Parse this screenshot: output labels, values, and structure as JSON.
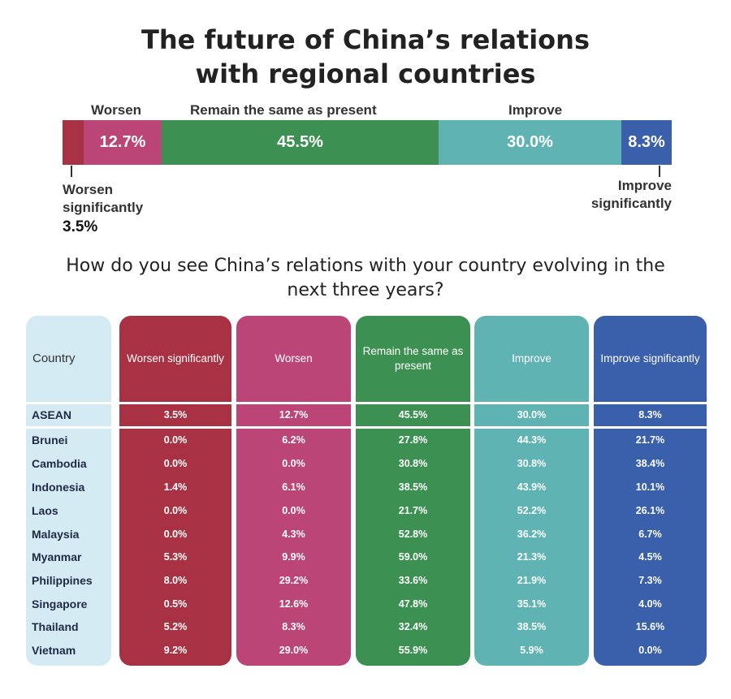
{
  "title_line1": "The future of China’s relations",
  "title_line2": "with regional countries",
  "question_line1": "How do you see China’s relations with your country evolving in the",
  "question_line2": "next three years?",
  "colors": {
    "worsen_significantly": "#a83244",
    "worsen": "#bc4577",
    "same": "#3c9152",
    "improve": "#5fb3b3",
    "improve_significantly": "#3b60ab",
    "country_col": "#d4ebf4"
  },
  "chart_data": [
    {
      "type": "bar",
      "stacked": true,
      "categories": [
        "Worsen significantly",
        "Worsen",
        "Remain the same as present",
        "Improve",
        "Improve significantly"
      ],
      "values": [
        3.5,
        12.7,
        45.5,
        30.0,
        8.3
      ],
      "value_labels": [
        "3.5%",
        "12.7%",
        "45.5%",
        "30.0%",
        "8.3%"
      ],
      "top_labels": {
        "worsen": "Worsen",
        "same": "Remain the same as present",
        "improve": "Improve"
      },
      "side_labels": {
        "worsen_sig_l1": "Worsen",
        "worsen_sig_l2": "significantly",
        "improve_sig_l1": "Improve",
        "improve_sig_l2": "significantly"
      }
    },
    {
      "type": "table",
      "columns": [
        "Country",
        "Worsen significantly",
        "Worsen",
        "Remain the same as present",
        "Improve",
        "Improve significantly"
      ],
      "rows": [
        [
          "ASEAN",
          "3.5%",
          "12.7%",
          "45.5%",
          "30.0%",
          "8.3%"
        ],
        [
          "Brunei",
          "0.0%",
          "6.2%",
          "27.8%",
          "44.3%",
          "21.7%"
        ],
        [
          "Cambodia",
          "0.0%",
          "0.0%",
          "30.8%",
          "30.8%",
          "38.4%"
        ],
        [
          "Indonesia",
          "1.4%",
          "6.1%",
          "38.5%",
          "43.9%",
          "10.1%"
        ],
        [
          "Laos",
          "0.0%",
          "0.0%",
          "21.7%",
          "52.2%",
          "26.1%"
        ],
        [
          "Malaysia",
          "0.0%",
          "4.3%",
          "52.8%",
          "36.2%",
          "6.7%"
        ],
        [
          "Myanmar",
          "5.3%",
          "9.9%",
          "59.0%",
          "21.3%",
          "4.5%"
        ],
        [
          "Philippines",
          "8.0%",
          "29.2%",
          "33.6%",
          "21.9%",
          "7.3%"
        ],
        [
          "Singapore",
          "0.5%",
          "12.6%",
          "47.8%",
          "35.1%",
          "4.0%"
        ],
        [
          "Thailand",
          "5.2%",
          "8.3%",
          "32.4%",
          "38.5%",
          "15.6%"
        ],
        [
          "Vietnam",
          "9.2%",
          "29.0%",
          "55.9%",
          "5.9%",
          "0.0%"
        ]
      ]
    }
  ]
}
